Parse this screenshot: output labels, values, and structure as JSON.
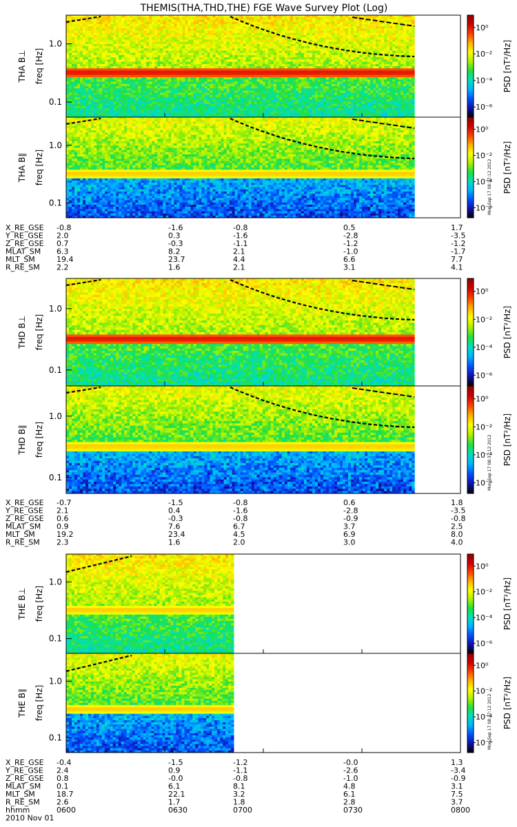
{
  "title": "THEMIS(THA,THD,THE) FGE Wave Survey Plot (Log)",
  "date_label": "2010 Nov 01",
  "colorbar": {
    "label": "PSD [nT²/Hz]",
    "ticks": [
      "10⁰",
      "10⁻²",
      "10⁻⁴",
      "10⁻⁶"
    ],
    "stamp": "Mon Sep 17 08:37:12 2012",
    "colors": [
      "#000000",
      "#1010b0",
      "#0050ff",
      "#00b4ff",
      "#00e0c0",
      "#20e040",
      "#b0f000",
      "#ffff00",
      "#ffb000",
      "#ff4000",
      "#d00000",
      "#900000"
    ]
  },
  "chart_data": {
    "type": "heatmap",
    "x_ticks": [
      "0600",
      "0630",
      "0700",
      "0730",
      "0800"
    ],
    "x_range": [
      "0600",
      "0800"
    ],
    "ylabel": "freq [Hz]",
    "y_ticks": [
      "1.0",
      "0.1"
    ],
    "panels": [
      {
        "name": "THA B⊥",
        "probe": "tha",
        "kind": "perp",
        "data_end": "0746",
        "strong_band": true
      },
      {
        "name": "THA B∥",
        "probe": "tha",
        "kind": "par",
        "data_end": "0746"
      },
      {
        "name": "THD B⊥",
        "probe": "thd",
        "kind": "perp",
        "data_end": "0746",
        "strong_band": true
      },
      {
        "name": "THD B∥",
        "probe": "thd",
        "kind": "par",
        "data_end": "0746"
      },
      {
        "name": "THE B⊥",
        "probe": "the",
        "kind": "perp",
        "data_end": "0651"
      },
      {
        "name": "THE B∥",
        "probe": "the",
        "kind": "par",
        "data_end": "0651"
      }
    ],
    "ephemeris": [
      {
        "probe": "tha",
        "rows": [
          {
            "label": "X_RE_GSE",
            "values": [
              "-0.8",
              "-1.6",
              "-0.8",
              "0.5",
              "1.7"
            ]
          },
          {
            "label": "Y_RE_GSE",
            "values": [
              "2.0",
              "0.3",
              "-1.6",
              "-2.8",
              "-3.5"
            ]
          },
          {
            "label": "Z_RE_GSE",
            "values": [
              "0.7",
              "-0.3",
              "-1.1",
              "-1.2",
              "-1.2"
            ]
          },
          {
            "label": "MLAT_SM",
            "values": [
              "6.3",
              "8.2",
              "2.1",
              "-1.0",
              "-1.7"
            ]
          },
          {
            "label": "MLT_SM",
            "values": [
              "19.4",
              "23.7",
              "4.4",
              "6.6",
              "7.7"
            ]
          },
          {
            "label": "R_RE_SM",
            "values": [
              "2.2",
              "1.6",
              "2.1",
              "3.1",
              "4.1"
            ]
          }
        ]
      },
      {
        "probe": "thd",
        "rows": [
          {
            "label": "X_RE_GSE",
            "values": [
              "-0.7",
              "-1.5",
              "-0.8",
              "0.6",
              "1.8"
            ]
          },
          {
            "label": "Y_RE_GSE",
            "values": [
              "2.1",
              "0.4",
              "-1.6",
              "-2.8",
              "-3.5"
            ]
          },
          {
            "label": "Z_RE_GSE",
            "values": [
              "0.6",
              "-0.3",
              "-0.8",
              "-0.9",
              "-0.8"
            ]
          },
          {
            "label": "MLAT_SM",
            "values": [
              "0.9",
              "7.6",
              "6.7",
              "3.7",
              "2.5"
            ]
          },
          {
            "label": "MLT_SM",
            "values": [
              "19.2",
              "23.4",
              "4.5",
              "6.9",
              "8.0"
            ]
          },
          {
            "label": "R_RE_SM",
            "values": [
              "2.3",
              "1.6",
              "2.0",
              "3.0",
              "4.0"
            ]
          }
        ]
      },
      {
        "probe": "the",
        "rows": [
          {
            "label": "X_RE_GSE",
            "values": [
              "-0.4",
              "-1.5",
              "-1.2",
              "-0.0",
              "1.3"
            ]
          },
          {
            "label": "Y_RE_GSE",
            "values": [
              "2.4",
              "0.9",
              "-1.1",
              "-2.6",
              "-3.4"
            ]
          },
          {
            "label": "Z_RE_GSE",
            "values": [
              "0.8",
              "-0.0",
              "-0.8",
              "-1.0",
              "-0.9"
            ]
          },
          {
            "label": "MLAT_SM",
            "values": [
              "0.1",
              "6.1",
              "8.1",
              "4.8",
              "3.1"
            ]
          },
          {
            "label": "MLT_SM",
            "values": [
              "18.7",
              "22.1",
              "3.2",
              "6.1",
              "7.5"
            ]
          },
          {
            "label": "R_RE_SM",
            "values": [
              "2.6",
              "1.7",
              "1.8",
              "2.8",
              "3.7"
            ]
          }
        ]
      }
    ],
    "time_row_label": "hhmm"
  }
}
